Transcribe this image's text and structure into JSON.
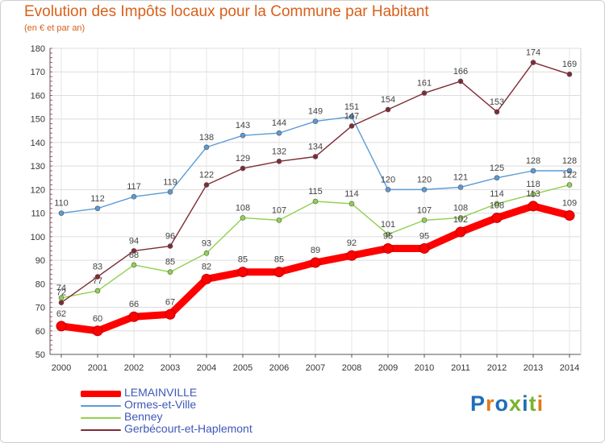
{
  "chart_data": {
    "type": "line",
    "title": "Evolution des Impôts locaux pour la Commune par Habitant",
    "subtitle": "(en € et par an)",
    "xlabel": "",
    "ylabel": "",
    "x": [
      2000,
      2001,
      2002,
      2003,
      2004,
      2005,
      2006,
      2007,
      2008,
      2009,
      2010,
      2011,
      2012,
      2013,
      2014
    ],
    "ylim": [
      50,
      180
    ],
    "yticks": [
      50,
      60,
      70,
      80,
      90,
      100,
      110,
      120,
      130,
      140,
      150,
      160,
      170,
      180
    ],
    "grid": true,
    "legend_position": "bottom-left",
    "series": [
      {
        "name": "Ormes-et-Ville",
        "color": "#5b9bd5",
        "values": [
          110,
          112,
          117,
          119,
          138,
          143,
          144,
          149,
          151,
          120,
          120,
          121,
          125,
          128,
          128
        ]
      },
      {
        "name": "Benney",
        "color": "#92d050",
        "values": [
          74,
          77,
          88,
          85,
          93,
          108,
          107,
          115,
          114,
          101,
          107,
          108,
          114,
          118,
          122
        ]
      },
      {
        "name": "Gerbécourt-et-Haplemont",
        "color": "#7f2b35",
        "values": [
          72,
          83,
          94,
          96,
          122,
          129,
          132,
          134,
          147,
          154,
          161,
          166,
          153,
          174,
          169
        ]
      },
      {
        "name": "LEMAINVILLE",
        "color": "#ff0000",
        "values": [
          62,
          60,
          66,
          67,
          82,
          85,
          85,
          89,
          92,
          95,
          95,
          102,
          108,
          113,
          109
        ]
      }
    ]
  },
  "legend": {
    "items": [
      {
        "label": "LEMAINVILLE",
        "color": "#ff0000"
      },
      {
        "label": "Ormes-et-Ville",
        "color": "#5b9bd5"
      },
      {
        "label": "Benney",
        "color": "#92d050"
      },
      {
        "label": "Gerbécourt-et-Haplemont",
        "color": "#7f2b35"
      }
    ]
  },
  "logo": {
    "text": "Proxiti",
    "colors": [
      "#1f6fb8",
      "#e07a1f",
      "#1f6fb8",
      "#7ab32e",
      "#1f6fb8",
      "#7ab32e",
      "#e07a1f"
    ]
  }
}
